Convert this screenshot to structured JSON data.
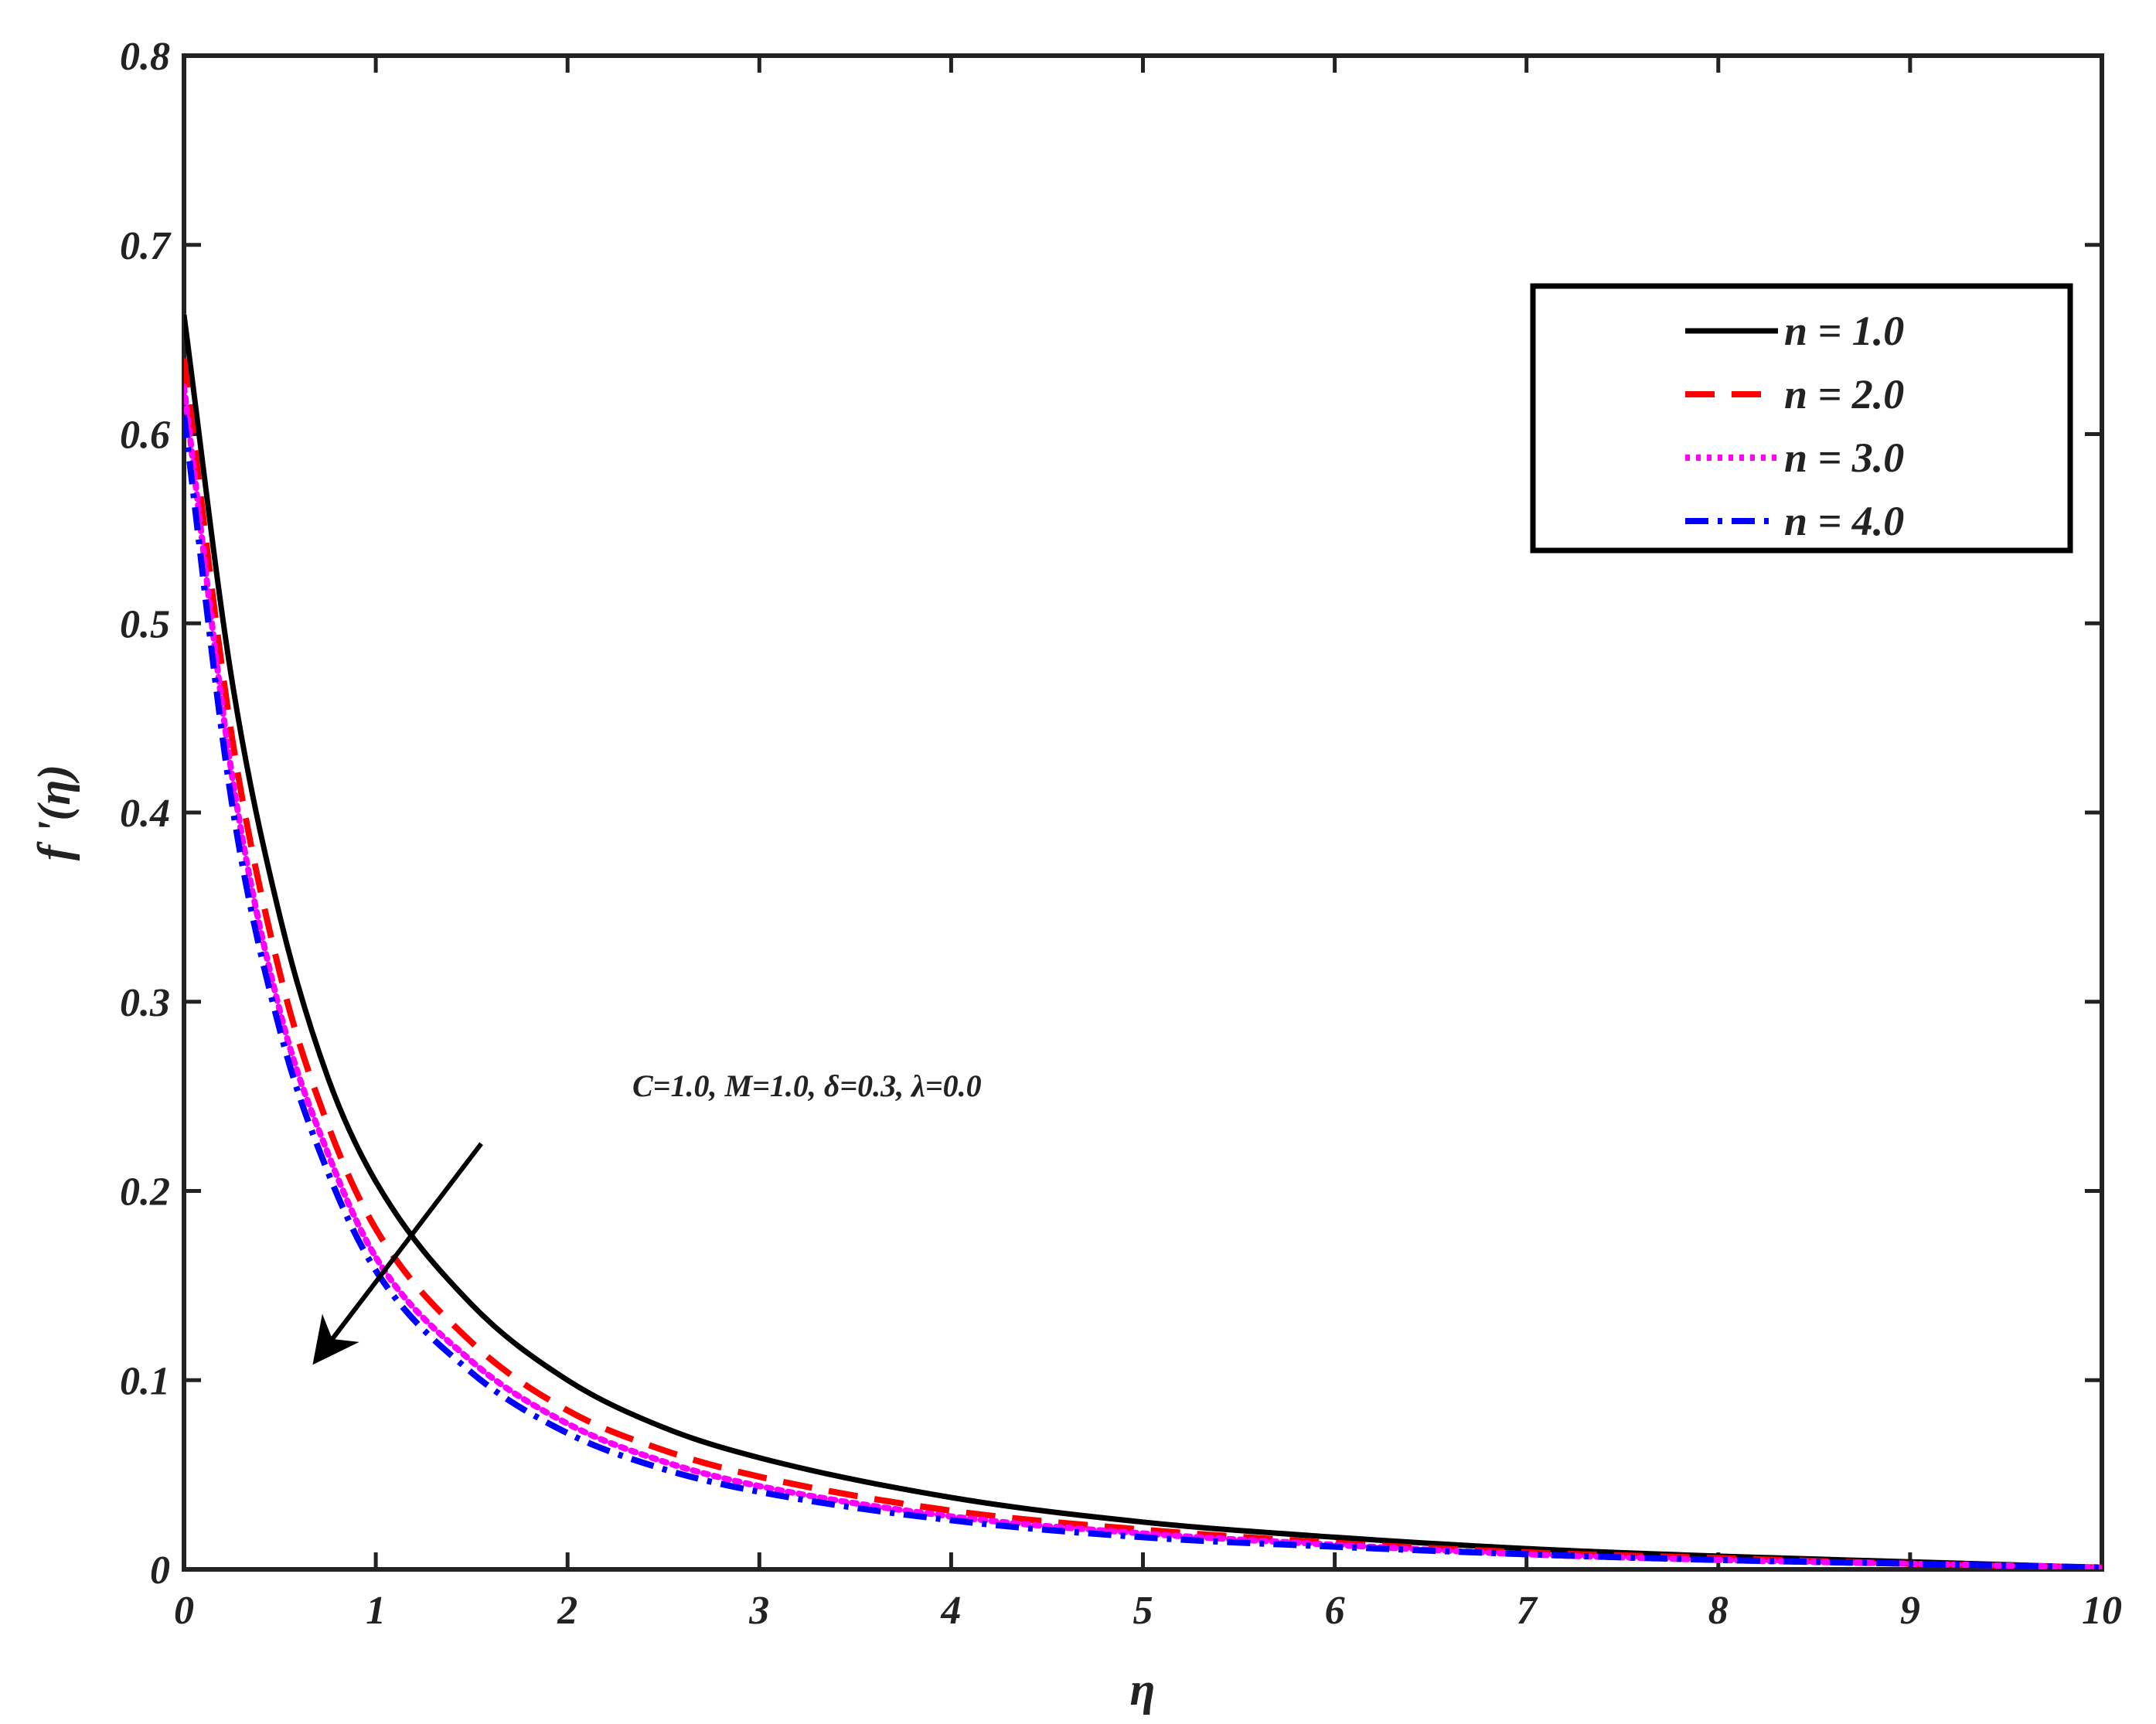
{
  "chart_data": {
    "type": "line",
    "xlabel": "η",
    "ylabel": "f '(η)",
    "xlim": [
      0,
      10
    ],
    "ylim": [
      0,
      0.8
    ],
    "xticks": [
      "0",
      "1",
      "2",
      "3",
      "4",
      "5",
      "6",
      "7",
      "8",
      "9",
      "10"
    ],
    "yticks": [
      "0",
      "0.1",
      "0.2",
      "0.3",
      "0.4",
      "0.5",
      "0.6",
      "0.7",
      "0.8"
    ],
    "grid": false,
    "legend_position": "top-right",
    "annotation": "C=1.0, M=1.0,  δ=0.3,  λ=0.0",
    "arrow": {
      "from": [
        1.55,
        0.225
      ],
      "to": [
        0.7,
        0.112
      ]
    },
    "x": [
      0,
      0.25,
      0.5,
      0.75,
      1,
      1.5,
      2,
      2.5,
      3,
      4,
      5,
      6,
      7,
      8,
      9,
      10
    ],
    "series": [
      {
        "name": "n = 1.0",
        "color": "#000000",
        "dash": "solid",
        "values": [
          0.663,
          0.47,
          0.345,
          0.26,
          0.205,
          0.14,
          0.1,
          0.075,
          0.059,
          0.038,
          0.025,
          0.017,
          0.011,
          0.007,
          0.004,
          0.001
        ]
      },
      {
        "name": "n = 2.0",
        "color": "#ff0000",
        "dash": "dashed",
        "values": [
          0.64,
          0.44,
          0.315,
          0.235,
          0.18,
          0.12,
          0.084,
          0.063,
          0.049,
          0.031,
          0.021,
          0.014,
          0.009,
          0.006,
          0.003,
          0.001
        ]
      },
      {
        "name": "n = 3.0",
        "color": "#ff00ff",
        "dash": "dotted",
        "values": [
          0.625,
          0.42,
          0.295,
          0.22,
          0.165,
          0.11,
          0.077,
          0.057,
          0.044,
          0.028,
          0.019,
          0.013,
          0.008,
          0.005,
          0.003,
          0.001
        ]
      },
      {
        "name": "n = 4.0",
        "color": "#0000ff",
        "dash": "dashdot",
        "values": [
          0.61,
          0.405,
          0.285,
          0.21,
          0.158,
          0.104,
          0.072,
          0.053,
          0.041,
          0.026,
          0.017,
          0.012,
          0.008,
          0.005,
          0.003,
          0.001
        ]
      }
    ]
  }
}
